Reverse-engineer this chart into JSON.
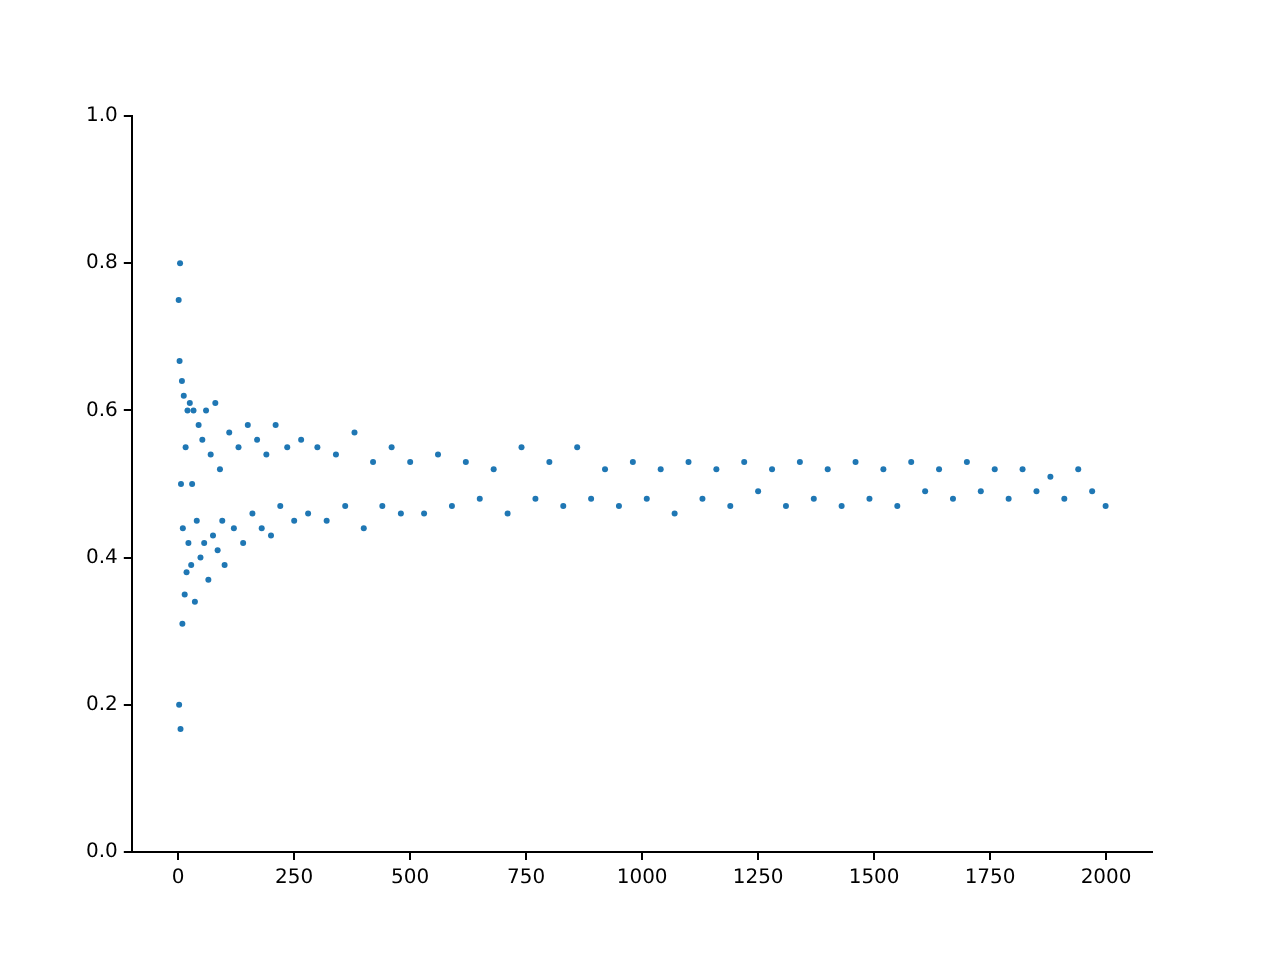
{
  "chart_data": {
    "type": "scatter",
    "xlim": [
      -100,
      2099
    ],
    "xticks": [
      0,
      250,
      500,
      750,
      1000,
      1250,
      1500,
      1750,
      2000
    ],
    "ylim": [
      0,
      1
    ],
    "yticks": [
      {
        "value": 0,
        "label": "0.0"
      },
      0.2,
      0.4,
      0.6,
      0.8,
      {
        "value": 1,
        "label": "1.0"
      }
    ],
    "marker": "circle",
    "grid": false,
    "legend": false,
    "series": [
      {
        "color": "#1f77b4",
        "x": [
          1,
          2,
          3,
          4,
          5,
          6,
          8,
          9,
          10,
          12,
          14,
          16,
          18,
          20,
          22,
          25,
          28,
          30,
          33,
          36,
          40,
          44,
          48,
          52,
          56,
          60,
          65,
          70,
          75,
          80,
          85,
          90,
          95,
          100,
          110,
          120,
          130,
          140,
          150,
          160,
          170,
          180,
          190,
          200,
          210,
          220,
          235,
          250,
          265,
          280,
          300,
          320,
          340,
          360,
          380,
          400,
          420,
          440,
          460,
          480,
          500,
          530,
          560,
          590,
          620,
          650,
          680,
          710,
          740,
          770,
          800,
          830,
          860,
          890,
          920,
          950,
          980,
          1010,
          1040,
          1070,
          1100,
          1130,
          1160,
          1190,
          1220,
          1250,
          1280,
          1310,
          1340,
          1370,
          1400,
          1430,
          1460,
          1490,
          1520,
          1550,
          1580,
          1610,
          1640,
          1670,
          1700,
          1730,
          1760,
          1790,
          1820,
          1850,
          1880,
          1910,
          1940,
          1970,
          1999
        ],
        "values": [
          0.75,
          0.2,
          0.667,
          0.8,
          0.167,
          0.5,
          0.64,
          0.31,
          0.44,
          0.62,
          0.35,
          0.55,
          0.38,
          0.6,
          0.42,
          0.61,
          0.39,
          0.5,
          0.6,
          0.34,
          0.45,
          0.58,
          0.4,
          0.56,
          0.42,
          0.6,
          0.37,
          0.54,
          0.43,
          0.61,
          0.41,
          0.52,
          0.45,
          0.39,
          0.57,
          0.44,
          0.55,
          0.42,
          0.58,
          0.46,
          0.56,
          0.44,
          0.54,
          0.43,
          0.58,
          0.47,
          0.55,
          0.45,
          0.56,
          0.46,
          0.55,
          0.45,
          0.54,
          0.47,
          0.57,
          0.44,
          0.53,
          0.47,
          0.55,
          0.46,
          0.53,
          0.46,
          0.54,
          0.47,
          0.53,
          0.48,
          0.52,
          0.46,
          0.55,
          0.48,
          0.53,
          0.47,
          0.55,
          0.48,
          0.52,
          0.47,
          0.53,
          0.48,
          0.52,
          0.46,
          0.53,
          0.48,
          0.52,
          0.47,
          0.53,
          0.49,
          0.52,
          0.47,
          0.53,
          0.48,
          0.52,
          0.47,
          0.53,
          0.48,
          0.52,
          0.47,
          0.53,
          0.49,
          0.52,
          0.48,
          0.53,
          0.49,
          0.52,
          0.48,
          0.52,
          0.49,
          0.51,
          0.48,
          0.52,
          0.49,
          0.47
        ]
      }
    ]
  }
}
